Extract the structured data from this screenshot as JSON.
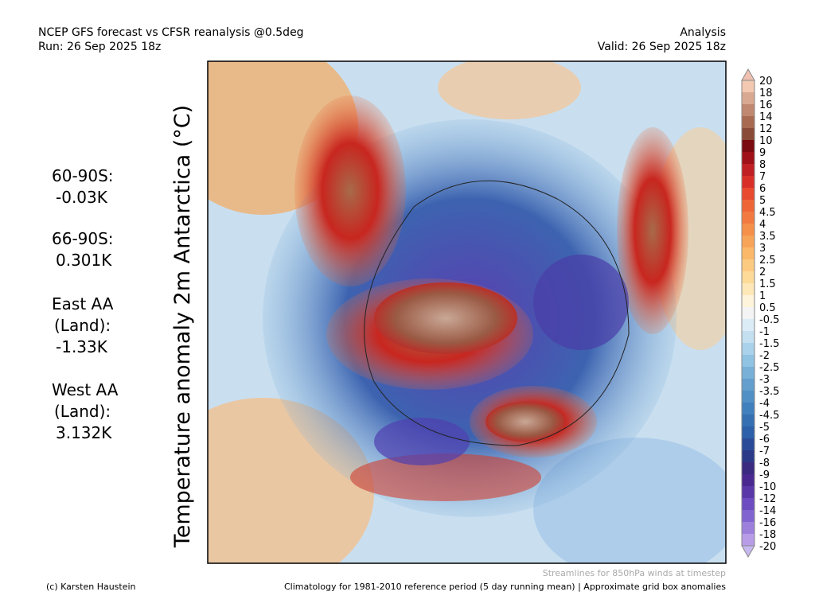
{
  "header": {
    "title": "NCEP GFS forecast vs CFSR reanalysis @0.5deg",
    "run": "Run: 26 Sep 2025 18z",
    "mode": "Analysis",
    "valid": "Valid: 26 Sep 2025 18z"
  },
  "stats": [
    {
      "lines": [
        "60-90S:",
        "-0.03K"
      ]
    },
    {
      "lines": [
        "66-90S:",
        "0.301K"
      ]
    },
    {
      "lines": [
        "East AA",
        "(Land):",
        "-1.33K"
      ]
    },
    {
      "lines": [
        "West AA",
        "(Land):",
        "3.132K"
      ]
    }
  ],
  "map": {
    "title": "Temperature anomaly 2m Antarctica (°C)"
  },
  "colorbar": {
    "labels": [
      "20",
      "18",
      "16",
      "14",
      "12",
      "10",
      "9",
      "8",
      "7",
      "6",
      "5",
      "4.5",
      "4",
      "3.5",
      "3",
      "2.5",
      "2",
      "1.5",
      "1",
      "0.5",
      "-0.5",
      "-1",
      "-1.5",
      "-2",
      "-2.5",
      "-3",
      "-3.5",
      "-4",
      "-4.5",
      "-5",
      "-6",
      "-7",
      "-8",
      "-9",
      "-10",
      "-12",
      "-14",
      "-16",
      "-18",
      "-20"
    ]
  },
  "footer": {
    "credit": "(c) Karsten Haustein",
    "streamlines": "Streamlines for 850hPa winds at timestep",
    "climatology": "Climatology for 1981-2010 reference period (5 day running mean) | Approximate grid box anomalies"
  }
}
